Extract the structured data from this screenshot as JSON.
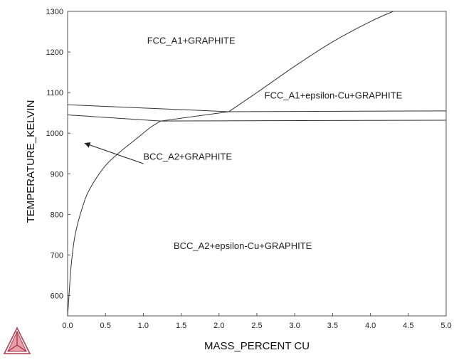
{
  "chart_data": {
    "type": "line",
    "title": "",
    "xlabel": "MASS_PERCENT CU",
    "ylabel": "TEMPERATURE_KELVIN",
    "xlim": [
      0,
      5
    ],
    "ylim": [
      550,
      1300
    ],
    "xticks": [
      "0.0",
      "0.5",
      "1.0",
      "1.5",
      "2.0",
      "2.5",
      "3.0",
      "3.5",
      "4.0",
      "4.5",
      "5.0"
    ],
    "yticks": [
      "600",
      "700",
      "800",
      "900",
      "1000",
      "1100",
      "1200",
      "1300"
    ],
    "grid": false,
    "series": [
      {
        "values": [
          [
            2.13,
            1053
          ],
          [
            2.5,
            1100
          ],
          [
            3.0,
            1165
          ],
          [
            3.5,
            1225
          ],
          [
            4.0,
            1275
          ],
          [
            4.3,
            1300
          ]
        ]
      },
      {
        "values": [
          [
            0.0,
            1070
          ],
          [
            2.13,
            1053
          ],
          [
            5.0,
            1055
          ]
        ]
      },
      {
        "values": [
          [
            0.0,
            1045
          ],
          [
            1.23,
            1030
          ],
          [
            5.0,
            1032
          ]
        ]
      },
      {
        "values": [
          [
            1.23,
            1030
          ],
          [
            2.13,
            1053
          ]
        ]
      },
      {
        "values": [
          [
            0.0,
            550
          ],
          [
            0.02,
            605
          ],
          [
            0.05,
            680
          ],
          [
            0.1,
            750
          ],
          [
            0.2,
            820
          ],
          [
            0.3,
            865
          ],
          [
            0.5,
            920
          ],
          [
            0.7,
            955
          ],
          [
            0.9,
            985
          ],
          [
            1.1,
            1015
          ],
          [
            1.23,
            1030
          ]
        ]
      }
    ],
    "annotations": [
      {
        "text": "FCC_A1+GRAPHITE",
        "x": 1.05,
        "y": 1220
      },
      {
        "text": "FCC_A1+epsilon-Cu+GRAPHITE",
        "x": 2.6,
        "y": 1085
      },
      {
        "text": "BCC_A2+GRAPHITE",
        "x": 1.0,
        "y": 935
      },
      {
        "text": "BCC_A2+epsilon-Cu+GRAPHITE",
        "x": 1.4,
        "y": 715
      }
    ],
    "arrow": {
      "from": [
        1.0,
        925
      ],
      "to": [
        0.23,
        975
      ]
    }
  },
  "logo": {
    "name": "thermo-calc-logo-icon"
  }
}
